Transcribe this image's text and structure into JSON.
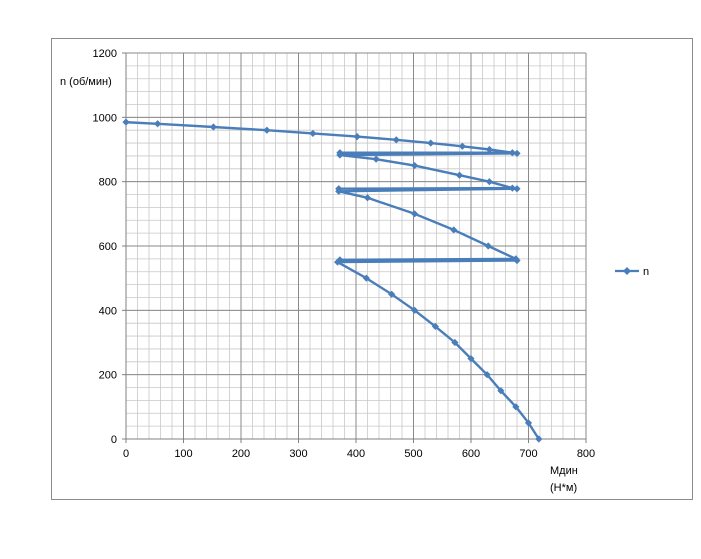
{
  "chart_data": {
    "type": "scatter",
    "subtype": "line-with-markers",
    "ylabel": "n (об/мин)",
    "xlabel_lines": [
      "Мдин",
      "(Н*м)"
    ],
    "xlim": [
      0,
      800
    ],
    "ylim": [
      0,
      1200
    ],
    "x_ticks": [
      0,
      100,
      200,
      300,
      400,
      500,
      600,
      700,
      800
    ],
    "y_ticks": [
      0,
      200,
      400,
      600,
      800,
      1000,
      1200
    ],
    "grid": true,
    "legend_position": "right",
    "series_color": "#4a7ebb",
    "series": [
      {
        "name": "n",
        "points": [
          {
            "x": 0,
            "y": 985
          },
          {
            "x": 55,
            "y": 980
          },
          {
            "x": 152,
            "y": 970
          },
          {
            "x": 245,
            "y": 960
          },
          {
            "x": 325,
            "y": 950
          },
          {
            "x": 402,
            "y": 940
          },
          {
            "x": 470,
            "y": 930
          },
          {
            "x": 530,
            "y": 920
          },
          {
            "x": 585,
            "y": 910
          },
          {
            "x": 632,
            "y": 900
          },
          {
            "x": 672,
            "y": 890
          },
          {
            "x": 372,
            "y": 890
          },
          {
            "x": 680,
            "y": 888
          },
          {
            "x": 372,
            "y": 883
          },
          {
            "x": 435,
            "y": 870
          },
          {
            "x": 502,
            "y": 850
          },
          {
            "x": 580,
            "y": 820
          },
          {
            "x": 632,
            "y": 800
          },
          {
            "x": 672,
            "y": 780
          },
          {
            "x": 370,
            "y": 778
          },
          {
            "x": 680,
            "y": 778
          },
          {
            "x": 370,
            "y": 770
          },
          {
            "x": 420,
            "y": 750
          },
          {
            "x": 502,
            "y": 700
          },
          {
            "x": 570,
            "y": 650
          },
          {
            "x": 630,
            "y": 600
          },
          {
            "x": 678,
            "y": 560
          },
          {
            "x": 372,
            "y": 557
          },
          {
            "x": 680,
            "y": 555
          },
          {
            "x": 368,
            "y": 550
          },
          {
            "x": 418,
            "y": 500
          },
          {
            "x": 462,
            "y": 450
          },
          {
            "x": 502,
            "y": 400
          },
          {
            "x": 538,
            "y": 350
          },
          {
            "x": 572,
            "y": 300
          },
          {
            "x": 600,
            "y": 250
          },
          {
            "x": 628,
            "y": 200
          },
          {
            "x": 652,
            "y": 150
          },
          {
            "x": 678,
            "y": 100
          },
          {
            "x": 700,
            "y": 50
          },
          {
            "x": 718,
            "y": 0
          }
        ]
      }
    ]
  }
}
